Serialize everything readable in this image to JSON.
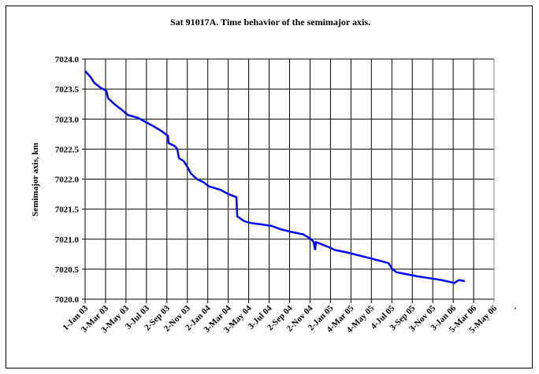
{
  "chart_data": {
    "type": "line",
    "title": "Sat 91017A.  Time behavior of the semimajor axis.",
    "xlabel": "",
    "ylabel": "Semimajor axis, km",
    "ylim": [
      7020.0,
      7024.0
    ],
    "yticks": [
      "7020.0",
      "7020.5",
      "7021.0",
      "7021.5",
      "7022.0",
      "7022.5",
      "7023.0",
      "7023.5",
      "7024.0"
    ],
    "xticks": [
      "1-Jan 03",
      "3-Mar 03",
      "3-May 03",
      "3-Jul 03",
      "2-Sep 03",
      "2-Nov 03",
      "2-Jan 04",
      "3-Mar 04",
      "3-May 04",
      "3-Jul 04",
      "2-Sep 04",
      "2-Nov 04",
      "2-Jan 05",
      "4-Mar 05",
      "4-May 05",
      "4-Jul 05",
      "3-Sep 05",
      "3-Nov 05",
      "3-Jan 06",
      "5-Mar 06",
      "5-May 06",
      "-"
    ],
    "x_unit": "tick interval index (0 = 1-Jan 03)",
    "grid": true,
    "series": [
      {
        "name": "semimajor axis",
        "color": "#0000ff",
        "x": [
          0,
          0.27,
          0.46,
          0.77,
          1.04,
          1.12,
          1.43,
          1.81,
          2.08,
          2.58,
          2.97,
          3.35,
          3.74,
          3.93,
          4.05,
          4.08,
          4.39,
          4.51,
          4.59,
          4.82,
          5.01,
          5.16,
          5.47,
          5.78,
          6.05,
          6.63,
          7.01,
          7.4,
          7.44,
          7.78,
          8.09,
          8.55,
          9.13,
          9.52,
          10.1,
          10.67,
          11.06,
          11.18,
          11.25,
          11.29,
          11.45,
          11.83,
          12.22,
          12.79,
          13.37,
          13.95,
          14.53,
          14.84,
          15.03,
          15.22,
          15.68,
          16.26,
          16.84,
          17.42,
          18.07,
          18.19,
          18.3,
          18.57
        ],
        "y": [
          7023.8,
          7023.7,
          7023.6,
          7023.52,
          7023.47,
          7023.35,
          7023.25,
          7023.15,
          7023.07,
          7023.02,
          7022.95,
          7022.88,
          7022.8,
          7022.75,
          7022.72,
          7022.6,
          7022.55,
          7022.5,
          7022.35,
          7022.3,
          7022.2,
          7022.1,
          7022.0,
          7021.95,
          7021.88,
          7021.82,
          7021.75,
          7021.7,
          7021.38,
          7021.3,
          7021.27,
          7021.25,
          7021.22,
          7021.17,
          7021.12,
          7021.08,
          7021.0,
          7020.95,
          7020.82,
          7020.95,
          7020.93,
          7020.88,
          7020.82,
          7020.78,
          7020.73,
          7020.68,
          7020.63,
          7020.6,
          7020.5,
          7020.45,
          7020.42,
          7020.38,
          7020.35,
          7020.32,
          7020.27,
          7020.3,
          7020.32,
          7020.3
        ]
      }
    ]
  }
}
